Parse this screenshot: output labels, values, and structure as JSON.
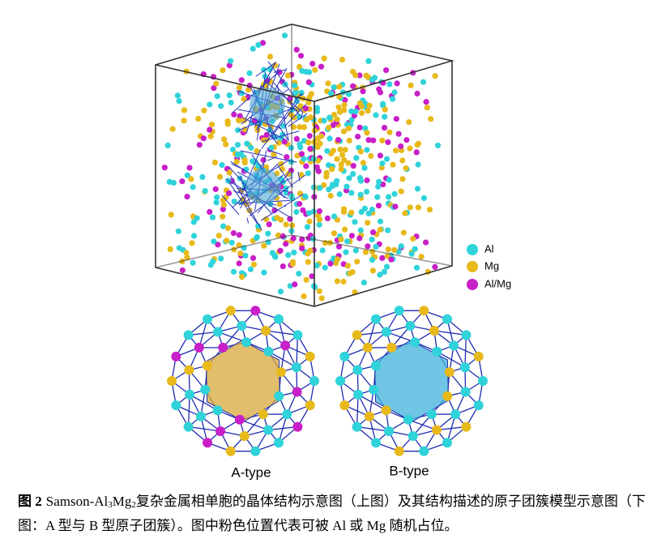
{
  "figure": {
    "legend": [
      "Al",
      "Mg",
      "Al/Mg"
    ],
    "clusters": [
      "A-type",
      "B-type"
    ],
    "caption": {
      "label": "图 2",
      "pre": "Samson-Al",
      "sub1": "3",
      "mid": "Mg",
      "sub2": "2",
      "post": "复杂金属相单胞的晶体结构示意图（上图）及其结构描述的原子团簇模型示意图（下图：A 型与 B 型原子团簇）。图中粉色位置代表可被 Al 或 Mg 随机占位。"
    }
  }
}
